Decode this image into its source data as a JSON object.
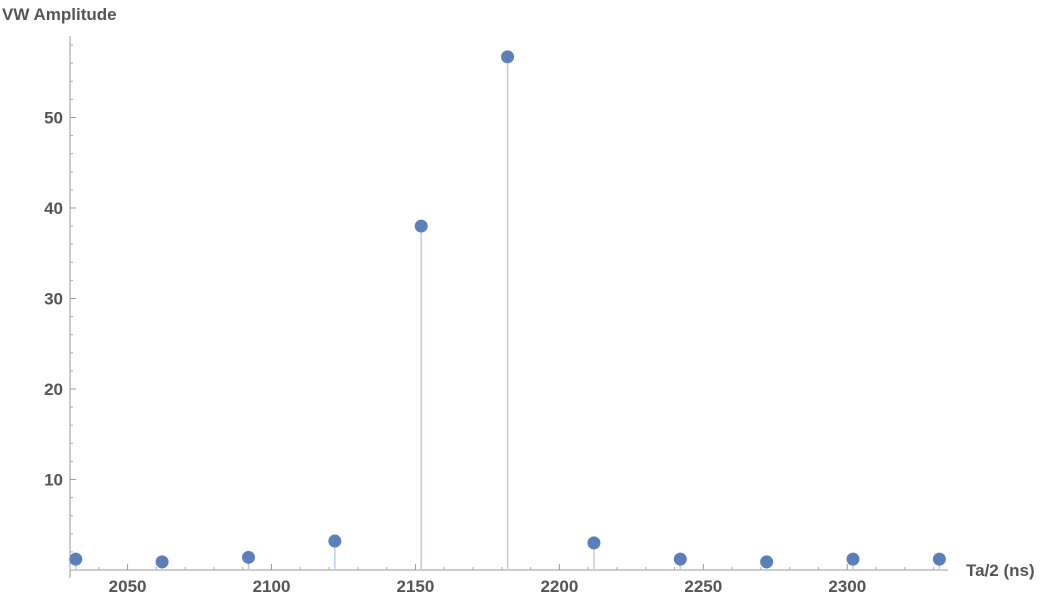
{
  "chart_data": {
    "type": "scatter",
    "title": "",
    "xlabel": "Ta/2 (ns)",
    "ylabel": "VW Amplitude",
    "xlim": [
      2030,
      2335
    ],
    "ylim": [
      0,
      59
    ],
    "x_ticks": [
      2050,
      2100,
      2150,
      2200,
      2250,
      2300
    ],
    "y_ticks": [
      10,
      20,
      30,
      40,
      50
    ],
    "grid": false,
    "stems": true,
    "series": [
      {
        "color": "#5b7fb8",
        "stem_color": "#b9cde3",
        "points": [
          {
            "x": 2032,
            "y": 1.2
          },
          {
            "x": 2062,
            "y": 0.9
          },
          {
            "x": 2092,
            "y": 1.4
          },
          {
            "x": 2122,
            "y": 3.2
          },
          {
            "x": 2152,
            "y": 38.0
          },
          {
            "x": 2182,
            "y": 56.7
          },
          {
            "x": 2212,
            "y": 3.0
          },
          {
            "x": 2242,
            "y": 1.2
          },
          {
            "x": 2272,
            "y": 0.9
          },
          {
            "x": 2302,
            "y": 1.2
          },
          {
            "x": 2332,
            "y": 1.2
          }
        ]
      }
    ]
  }
}
